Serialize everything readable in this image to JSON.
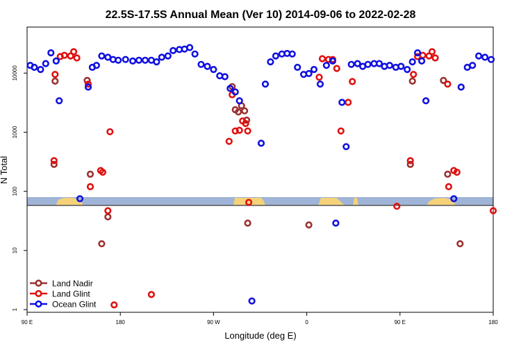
{
  "chart_data": {
    "type": "scatter",
    "title": "22.5S-17.5S Annual Mean (Ver 10)   2014-09-06 to 2022-02-28",
    "xlabel": "Longitude (deg E)",
    "ylabel": "N Total",
    "y_scale": "log",
    "xlim": [
      90,
      540
    ],
    "ylim": [
      0.9,
      60000
    ],
    "x_ticks": [
      {
        "value": 90,
        "label": "90 E"
      },
      {
        "value": 180,
        "label": "180"
      },
      {
        "value": 270,
        "label": "90 W"
      },
      {
        "value": 360,
        "label": "0"
      },
      {
        "value": 450,
        "label": "90 E"
      },
      {
        "value": 540,
        "label": "180"
      }
    ],
    "y_ticks": [
      {
        "value": 1,
        "label": "1"
      },
      {
        "value": 10,
        "label": "10"
      },
      {
        "value": 100,
        "label": "100"
      },
      {
        "value": 1000,
        "label": "1000"
      },
      {
        "value": 10000,
        "label": "10000"
      }
    ],
    "legend_position": "bottom-left",
    "map_strip": {
      "ocean_color": "#9fb4d6",
      "land_color": "#f5d27a",
      "line_color": "#555555"
    },
    "series": [
      {
        "name": "Land Nadir",
        "color": "#9b3030",
        "points": [
          [
            116,
            285
          ],
          [
            117,
            7300
          ],
          [
            148,
            7500
          ],
          [
            151,
            195
          ],
          [
            162,
            13
          ],
          [
            168,
            37
          ],
          [
            288,
            5900
          ],
          [
            291,
            2400
          ],
          [
            294,
            2200
          ],
          [
            297,
            2800
          ],
          [
            300,
            2300
          ],
          [
            302,
            1600
          ],
          [
            303,
            29
          ],
          [
            362,
            27
          ],
          [
            460,
            285
          ],
          [
            462,
            7300
          ],
          [
            492,
            7500
          ],
          [
            496,
            195
          ],
          [
            508,
            13
          ]
        ]
      },
      {
        "name": "Land Glint",
        "color": "#e11010",
        "points": [
          [
            116,
            330
          ],
          [
            117,
            9500
          ],
          [
            122,
            19000
          ],
          [
            126,
            20000
          ],
          [
            132,
            19500
          ],
          [
            135,
            23000
          ],
          [
            138,
            18000
          ],
          [
            149,
            6500
          ],
          [
            151,
            120
          ],
          [
            161,
            225
          ],
          [
            163,
            210
          ],
          [
            168,
            47
          ],
          [
            170,
            1020
          ],
          [
            174,
            1.2
          ],
          [
            210,
            1.8
          ],
          [
            285,
            700
          ],
          [
            288,
            4300
          ],
          [
            291,
            1050
          ],
          [
            295,
            1080
          ],
          [
            298,
            1550
          ],
          [
            301,
            1400
          ],
          [
            303,
            1050
          ],
          [
            304,
            65
          ],
          [
            372,
            8500
          ],
          [
            375,
            17500
          ],
          [
            381,
            17000
          ],
          [
            385,
            17000
          ],
          [
            389,
            12000
          ],
          [
            393,
            1050
          ],
          [
            400,
            3200
          ],
          [
            404,
            7200
          ],
          [
            447,
            56
          ],
          [
            460,
            330
          ],
          [
            463,
            9500
          ],
          [
            467,
            19000
          ],
          [
            472,
            20000
          ],
          [
            478,
            19500
          ],
          [
            481,
            23000
          ],
          [
            484,
            18000
          ],
          [
            496,
            6500
          ],
          [
            497,
            120
          ],
          [
            502,
            225
          ],
          [
            505,
            210
          ],
          [
            540,
            47
          ]
        ]
      },
      {
        "name": "Ocean Glint",
        "color": "#1010e0",
        "points": [
          [
            93,
            13500
          ],
          [
            97,
            12500
          ],
          [
            103,
            11500
          ],
          [
            108,
            14500
          ],
          [
            113,
            22000
          ],
          [
            118,
            16000
          ],
          [
            121,
            3400
          ],
          [
            141,
            75
          ],
          [
            149,
            5800
          ],
          [
            153,
            12500
          ],
          [
            157,
            13500
          ],
          [
            162,
            19500
          ],
          [
            168,
            18500
          ],
          [
            173,
            17000
          ],
          [
            178,
            16500
          ],
          [
            185,
            17000
          ],
          [
            192,
            16000
          ],
          [
            198,
            16500
          ],
          [
            204,
            16500
          ],
          [
            210,
            16500
          ],
          [
            215,
            15500
          ],
          [
            220,
            18500
          ],
          [
            226,
            19500
          ],
          [
            231,
            24000
          ],
          [
            237,
            25000
          ],
          [
            242,
            25500
          ],
          [
            247,
            27000
          ],
          [
            252,
            21000
          ],
          [
            258,
            14000
          ],
          [
            264,
            13000
          ],
          [
            270,
            11500
          ],
          [
            276,
            9000
          ],
          [
            281,
            8700
          ],
          [
            286,
            5500
          ],
          [
            291,
            4800
          ],
          [
            295,
            3400
          ],
          [
            307,
            1.4
          ],
          [
            316,
            650
          ],
          [
            320,
            6500
          ],
          [
            325,
            15500
          ],
          [
            330,
            19500
          ],
          [
            336,
            21000
          ],
          [
            341,
            21500
          ],
          [
            346,
            21000
          ],
          [
            351,
            12500
          ],
          [
            357,
            9500
          ],
          [
            362,
            9800
          ],
          [
            367,
            11500
          ],
          [
            373,
            6500
          ],
          [
            379,
            13500
          ],
          [
            385,
            16000
          ],
          [
            388,
            29
          ],
          [
            394,
            3200
          ],
          [
            398,
            570
          ],
          [
            403,
            14000
          ],
          [
            409,
            14500
          ],
          [
            414,
            13000
          ],
          [
            419,
            14000
          ],
          [
            425,
            14500
          ],
          [
            430,
            14500
          ],
          [
            435,
            13000
          ],
          [
            440,
            13500
          ],
          [
            446,
            12500
          ],
          [
            451,
            13000
          ],
          [
            457,
            11500
          ],
          [
            462,
            15500
          ],
          [
            467,
            22000
          ],
          [
            471,
            16000
          ],
          [
            475,
            3400
          ],
          [
            502,
            75
          ],
          [
            509,
            5800
          ],
          [
            515,
            12500
          ],
          [
            520,
            13500
          ],
          [
            526,
            19500
          ],
          [
            532,
            18500
          ],
          [
            538,
            17000
          ]
        ]
      }
    ]
  }
}
